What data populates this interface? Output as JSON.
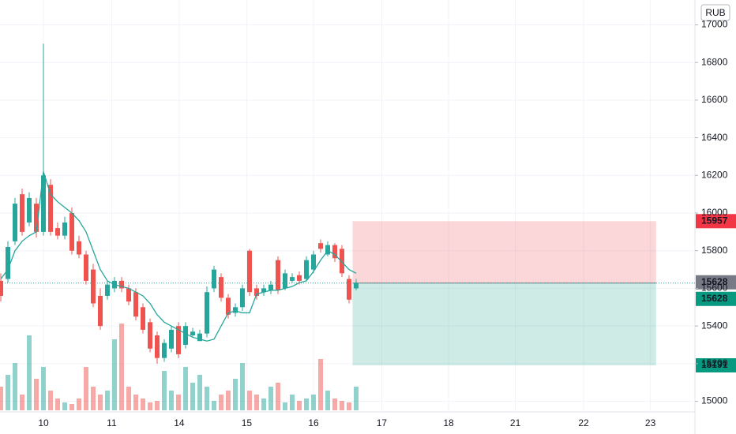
{
  "chart_data": {
    "type": "candlestick",
    "currency": "RUB",
    "open": [
      15640,
      15650,
      15850,
      16100,
      15950,
      16050,
      15900,
      16150,
      15920,
      15880,
      16000,
      15850,
      15780,
      15700,
      15560,
      15560,
      15600,
      15640,
      15600,
      15580,
      15500,
      15420,
      15350,
      15230,
      15280,
      15400,
      15300,
      15350,
      15320,
      15360,
      15600,
      15660,
      15550,
      15470,
      15500,
      15800,
      15600,
      15580,
      15590,
      15750,
      15600,
      15640,
      15670,
      15650,
      15700,
      15840,
      15780,
      15830,
      15810,
      15650,
      15600
    ],
    "high": [
      15680,
      15850,
      16080,
      16130,
      16110,
      16080,
      16900,
      16180,
      15950,
      15980,
      16030,
      15880,
      15800,
      15730,
      15600,
      15640,
      15660,
      15660,
      15620,
      15600,
      15520,
      15440,
      15370,
      15330,
      15400,
      15420,
      15420,
      15390,
      15380,
      15610,
      15720,
      15680,
      15570,
      15520,
      15620,
      15810,
      15620,
      15620,
      15640,
      15770,
      15700,
      15680,
      15690,
      15770,
      15800,
      15860,
      15850,
      15840,
      15830,
      15670,
      15650
    ],
    "low": [
      15530,
      15630,
      15830,
      15880,
      15930,
      15870,
      15880,
      15880,
      15860,
      15860,
      15780,
      15760,
      15620,
      15500,
      15380,
      15540,
      15580,
      15580,
      15510,
      15430,
      15360,
      15260,
      15200,
      15210,
      15260,
      15230,
      15280,
      15340,
      15330,
      15340,
      15580,
      15530,
      15440,
      15450,
      15480,
      15560,
      15540,
      15560,
      15570,
      15570,
      15590,
      15630,
      15620,
      15640,
      15680,
      15790,
      15770,
      15740,
      15660,
      15520,
      15590
    ],
    "close": [
      15560,
      15820,
      16050,
      15900,
      16080,
      15900,
      16200,
      15900,
      15880,
      15950,
      15800,
      15780,
      15640,
      15520,
      15400,
      15620,
      15640,
      15600,
      15530,
      15450,
      15380,
      15280,
      15230,
      15310,
      15380,
      15250,
      15400,
      15370,
      15360,
      15580,
      15700,
      15550,
      15460,
      15500,
      15600,
      15580,
      15560,
      15600,
      15620,
      15590,
      15680,
      15660,
      15640,
      15750,
      15780,
      15810,
      15830,
      15760,
      15680,
      15540,
      15630
    ],
    "volume": [
      30,
      45,
      60,
      20,
      95,
      40,
      55,
      25,
      15,
      10,
      8,
      15,
      55,
      30,
      20,
      25,
      90,
      110,
      30,
      20,
      15,
      10,
      12,
      50,
      25,
      20,
      55,
      35,
      45,
      30,
      12,
      20,
      25,
      40,
      60,
      25,
      20,
      15,
      30,
      35,
      10,
      20,
      12,
      15,
      20,
      65,
      25,
      15,
      12,
      10,
      30
    ],
    "ma": [
      15650,
      15700,
      15800,
      15850,
      15880,
      15900,
      16220,
      16100,
      16060,
      16030,
      16000,
      15960,
      15900,
      15800,
      15700,
      15640,
      15620,
      15610,
      15600,
      15580,
      15560,
      15520,
      15460,
      15420,
      15400,
      15380,
      15360,
      15340,
      15330,
      15320,
      15330,
      15400,
      15470,
      15480,
      15470,
      15470,
      15570,
      15580,
      15590,
      15590,
      15600,
      15610,
      15630,
      15640,
      15690,
      15750,
      15800,
      15780,
      15740,
      15700,
      15680
    ],
    "up_color": "#26a69a",
    "down_color": "#ef5350",
    "ma_color": "#26a69a",
    "xlim": [
      0,
      96
    ],
    "xticks": [
      {
        "value": 6,
        "label": "10"
      },
      {
        "value": 15.6,
        "label": "11"
      },
      {
        "value": 25.1,
        "label": "14"
      },
      {
        "value": 34.6,
        "label": "15"
      },
      {
        "value": 44,
        "label": "16"
      },
      {
        "value": 53.6,
        "label": "17"
      },
      {
        "value": 63,
        "label": "18"
      },
      {
        "value": 72.4,
        "label": "21"
      },
      {
        "value": 82,
        "label": "22"
      },
      {
        "value": 91.4,
        "label": "23"
      }
    ],
    "ylim": [
      14952,
      17132
    ],
    "yticks": [
      15000,
      15200,
      15400,
      15600,
      15800,
      16000,
      16200,
      16400,
      16600,
      16800,
      17000
    ],
    "last_price": 15628,
    "position": {
      "x_start": 49.5,
      "x_end": 92.2,
      "entry": 15628,
      "stop": 15957,
      "target": 15191
    },
    "grid": true
  }
}
